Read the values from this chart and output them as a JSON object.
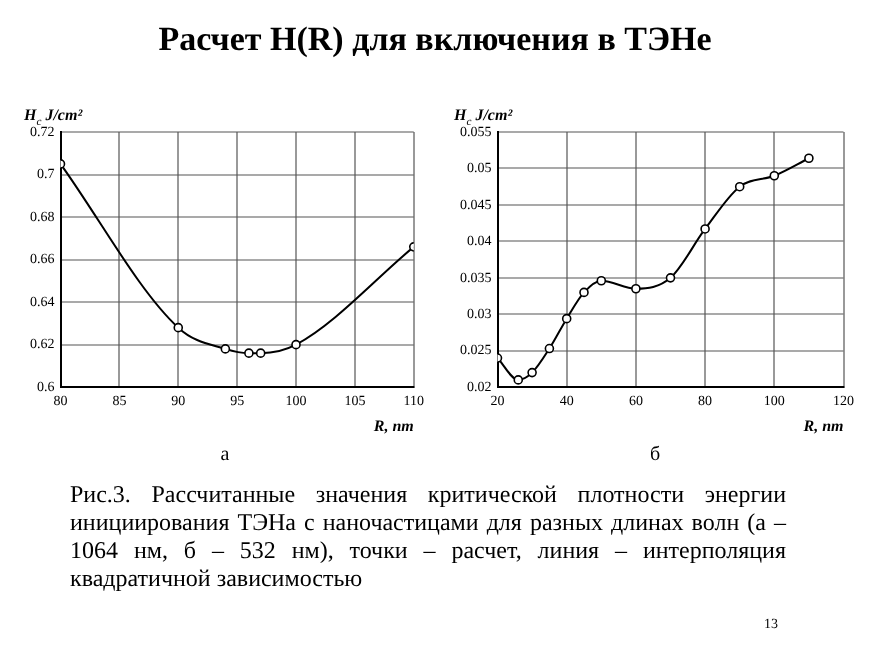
{
  "chart_data": [
    {
      "type": "line",
      "title": "Расчет H(R) для включения в ТЭНе",
      "xlabel": "R, nm",
      "ylabel": "H$_{c}$ J/cm²",
      "marker": "circle",
      "line_style": "solid",
      "grid": true,
      "legend": false,
      "x": [
        80,
        90,
        94,
        96,
        97,
        100,
        110
      ],
      "series": [
        {
          "color": "#000000",
          "values": [
            0.705,
            0.628,
            0.618,
            0.616,
            0.616,
            0.62,
            0.666
          ]
        }
      ],
      "xlim": [
        80,
        110
      ],
      "xticks": [
        80,
        85,
        90,
        95,
        100,
        105,
        110
      ],
      "ylim": [
        0.6,
        0.72
      ],
      "yticks": [
        0.6,
        0.62,
        0.64,
        0.66,
        0.68,
        0.7,
        0.72
      ],
      "annotations": [
        "а"
      ]
    },
    {
      "type": "line",
      "xlabel": "R, nm",
      "ylabel": "H$_{c}$ J/cm²",
      "marker": "circle",
      "line_style": "solid",
      "grid": true,
      "legend": false,
      "x": [
        20,
        26,
        30,
        35,
        40,
        45,
        50,
        60,
        70,
        80,
        90,
        100,
        110
      ],
      "series": [
        {
          "color": "#000000",
          "values": [
            0.024,
            0.021,
            0.022,
            0.0253,
            0.0294,
            0.033,
            0.0346,
            0.0335,
            0.035,
            0.0417,
            0.0475,
            0.049,
            0.0514
          ]
        }
      ],
      "xlim": [
        20,
        120
      ],
      "xticks": [
        20,
        40,
        60,
        80,
        100,
        120
      ],
      "ylim": [
        0.02,
        0.055
      ],
      "yticks": [
        0.02,
        0.025,
        0.03,
        0.035,
        0.04,
        0.045,
        0.05,
        0.055
      ],
      "annotations": [
        "б",
        "Рис.3. Рассчитанные значения критической плотности энергии инициирования ТЭНа с наночастицами для разных длинах волн (а – 1064 нм, б – 532 нм), точки – расчет, линия – интерполяция квадратичной зависимостью",
        "13"
      ]
    }
  ]
}
